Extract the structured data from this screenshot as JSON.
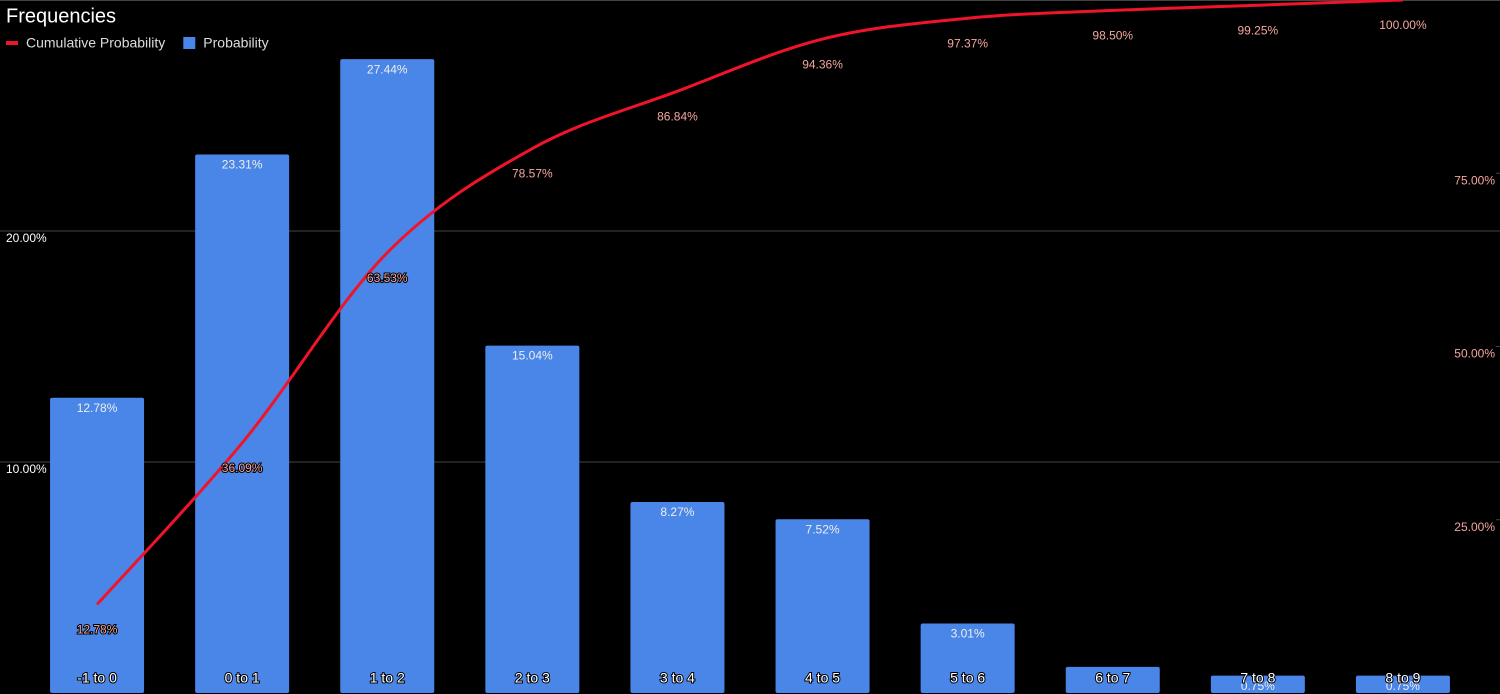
{
  "chart_data": {
    "type": "combo",
    "title": "Frequencies",
    "categories": [
      "-1 to 0",
      "0 to 1",
      "1 to 2",
      "2 to 3",
      "3 to 4",
      "4 to 5",
      "5 to 6",
      "6 to 7",
      "7 to 8",
      "8 to 9"
    ],
    "series": [
      {
        "name": "Cumulative Probability",
        "type": "line",
        "axis": "y2",
        "color": "#f0142a",
        "values": [
          12.78,
          36.09,
          63.53,
          78.57,
          86.84,
          94.36,
          97.37,
          98.5,
          99.25,
          100
        ],
        "value_labels": [
          "12.78%",
          "36.09%",
          "63.53%",
          "78.57%",
          "86.84%",
          "94.36%",
          "97.37%",
          "98.50%",
          "99.25%",
          "100.00%"
        ]
      },
      {
        "name": "Probability",
        "type": "bar",
        "color": "#4a86e8",
        "values": [
          12.78,
          23.31,
          27.44,
          15.04,
          8.27,
          7.52,
          3.01,
          1.13,
          0.75,
          0.75
        ],
        "value_labels": [
          "12.78%",
          "23.31%",
          "27.44%",
          "15.04%",
          "8.27%",
          "7.52%",
          "3.01%",
          null,
          "0.75%",
          "0.75%"
        ]
      }
    ],
    "ylim": [
      0,
      30
    ],
    "yticks": [
      {
        "value": 10,
        "label": "10.00%"
      },
      {
        "value": 20,
        "label": "20.00%"
      }
    ],
    "y2lim": [
      0,
      100
    ],
    "y2ticks": [
      {
        "value": 25,
        "label": "25.00%"
      },
      {
        "value": 50,
        "label": "50.00%"
      },
      {
        "value": 75,
        "label": "75.00%"
      }
    ],
    "grid": true,
    "legend": "top-left"
  }
}
